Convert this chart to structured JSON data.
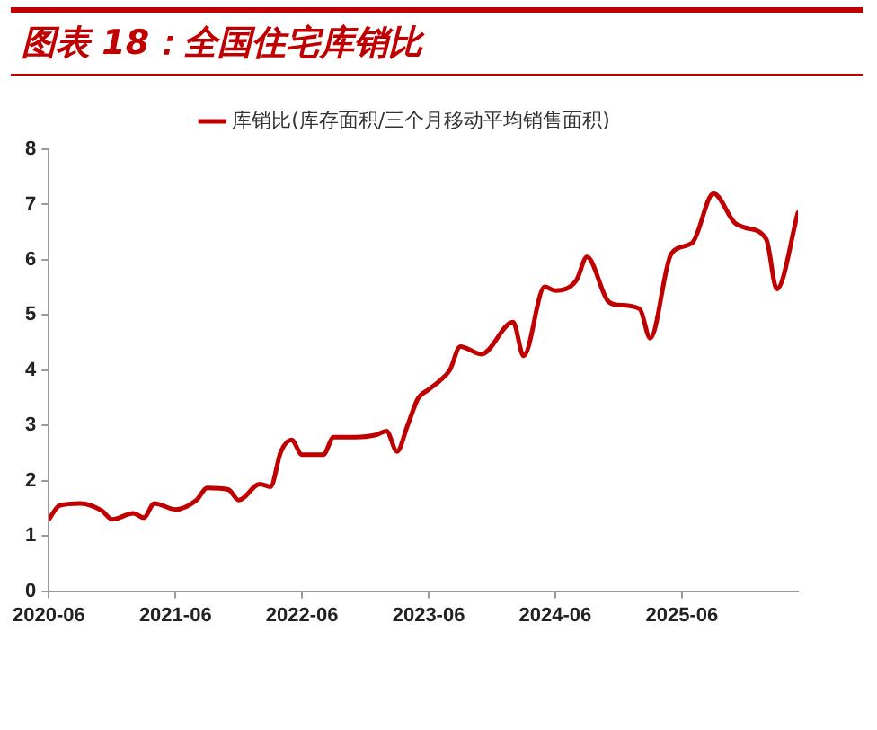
{
  "chart_data": {
    "type": "line",
    "title": "图表 18：全国住宅库销比",
    "x": [
      "2020-06",
      "2020-07",
      "2020-09",
      "2020-11",
      "2020-12",
      "2021-02",
      "2021-03",
      "2021-04",
      "2021-06",
      "2021-08",
      "2021-09",
      "2021-11",
      "2021-12",
      "2022-02",
      "2022-03",
      "2022-04",
      "2022-05",
      "2022-06",
      "2022-08",
      "2022-09",
      "2022-11",
      "2023-01",
      "2023-02",
      "2023-03",
      "2023-04",
      "2023-05",
      "2023-06",
      "2023-07",
      "2023-08",
      "2023-09",
      "2023-11",
      "2024-02",
      "2024-03",
      "2024-05",
      "2024-06",
      "2024-08",
      "2024-09",
      "2024-11",
      "2024-12",
      "2025-02",
      "2025-03",
      "2025-05",
      "2025-07",
      "2025-09",
      "2025-11",
      "2025-12",
      "2026-02",
      "2026-03",
      "2026-05"
    ],
    "series": [
      {
        "name": "库销比(库存面积/三个月移动平均销售面积)",
        "color": "#c00000",
        "values": [
          1.3,
          1.55,
          1.59,
          1.46,
          1.3,
          1.41,
          1.33,
          1.59,
          1.48,
          1.65,
          1.87,
          1.84,
          1.65,
          1.94,
          1.89,
          2.53,
          2.74,
          2.47,
          2.47,
          2.79,
          2.79,
          2.83,
          2.9,
          2.53,
          3.0,
          3.49,
          3.65,
          3.8,
          4.0,
          4.43,
          4.29,
          4.87,
          4.26,
          5.51,
          5.44,
          5.63,
          6.05,
          5.25,
          5.18,
          5.11,
          4.58,
          6.11,
          6.31,
          7.2,
          6.67,
          6.58,
          6.37,
          5.47,
          6.85
        ]
      }
    ],
    "xlim": [
      "2020-06",
      "2026-05"
    ],
    "xticks": [
      "2020-06",
      "2021-06",
      "2022-06",
      "2023-06",
      "2024-06",
      "2025-06"
    ],
    "ylim": [
      0,
      8
    ],
    "yticks": [
      0,
      1,
      2,
      3,
      4,
      5,
      6,
      7,
      8
    ],
    "legend": "top",
    "marker": "none",
    "line_style": "solid",
    "grid": false
  }
}
